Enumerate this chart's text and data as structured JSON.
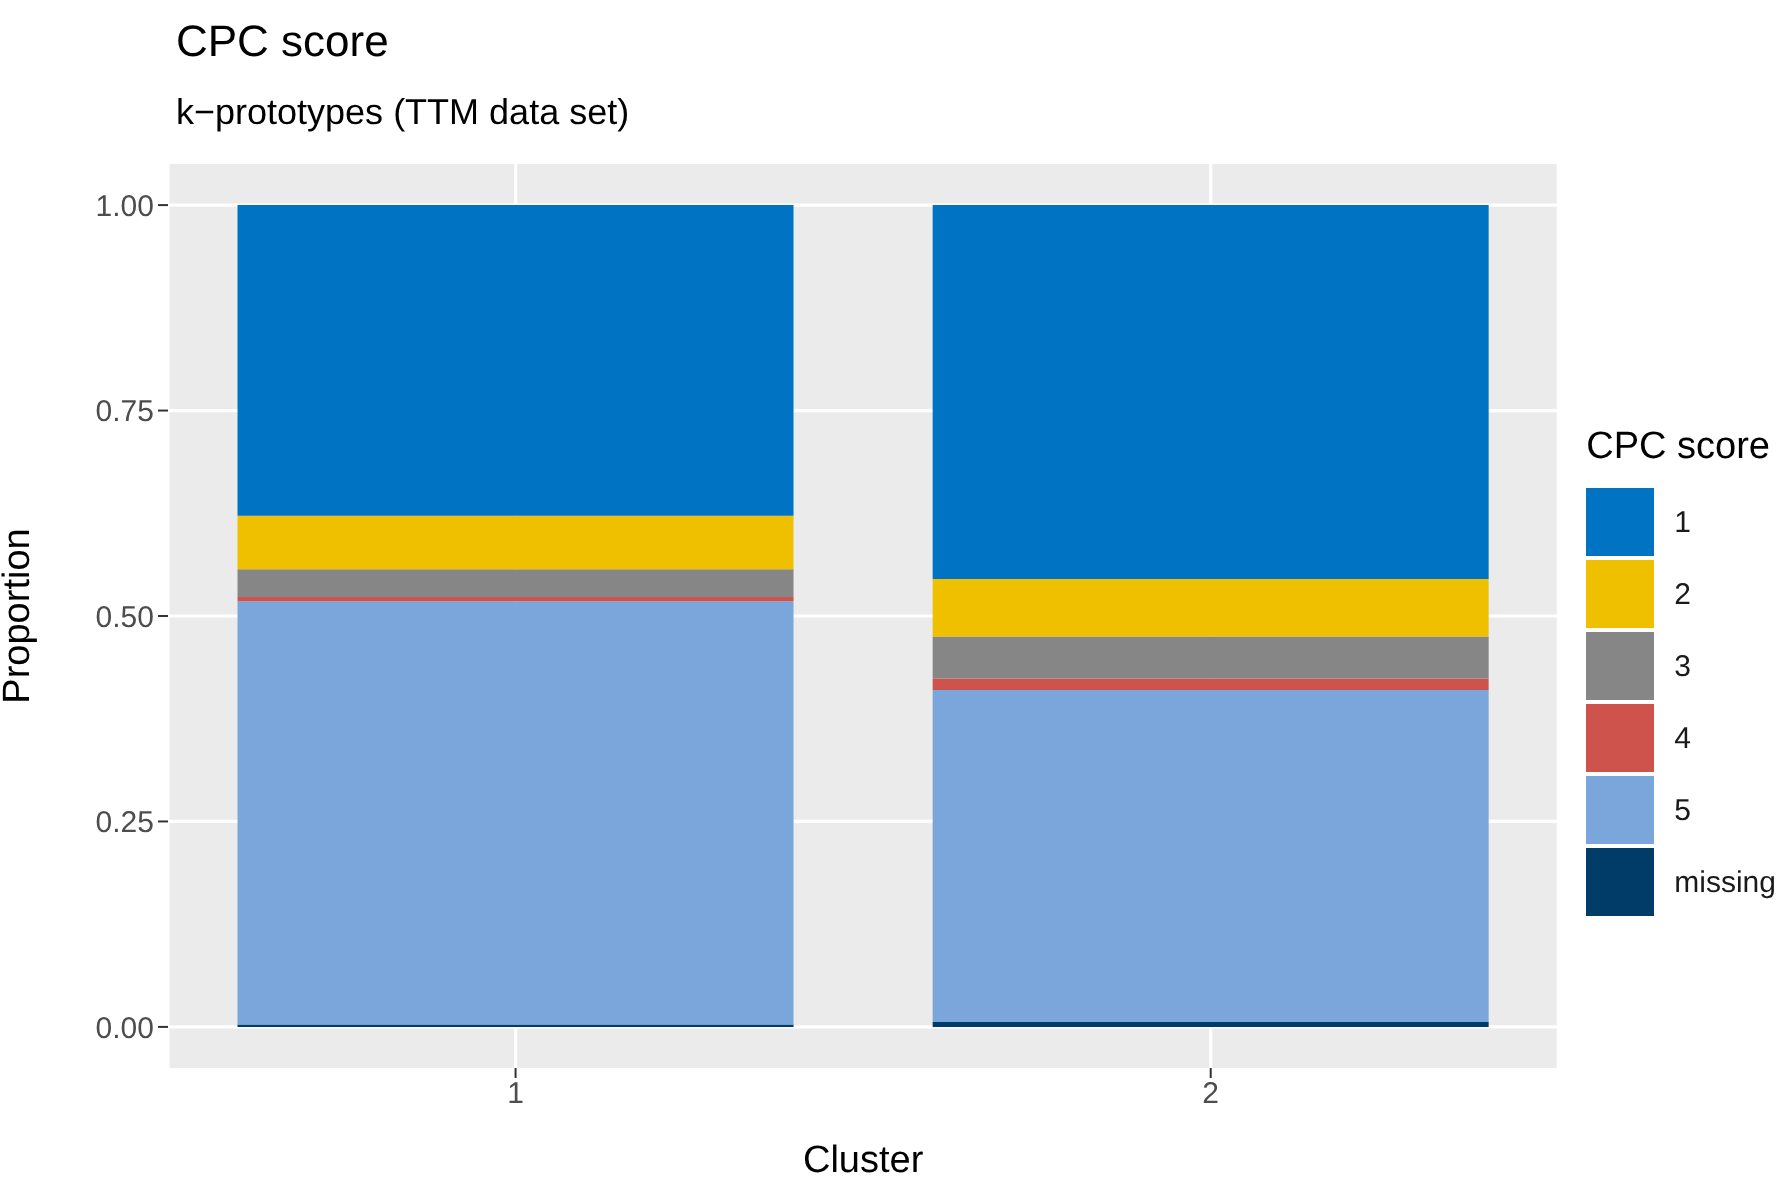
{
  "chart_data": {
    "type": "bar",
    "title": "CPC score",
    "subtitle": "k−prototypes (TTM data set)",
    "xlabel": "Cluster",
    "ylabel": "Proportion",
    "legend_title": "CPC score",
    "categories": [
      "1",
      "2"
    ],
    "stacked": true,
    "series": [
      {
        "name": "missing",
        "color": "#003c67",
        "values": [
          0.003,
          0.006
        ]
      },
      {
        "name": "5",
        "color": "#7aa6dc",
        "values": [
          0.515,
          0.404
        ]
      },
      {
        "name": "4",
        "color": "#cd534c",
        "values": [
          0.005,
          0.014
        ]
      },
      {
        "name": "3",
        "color": "#868686",
        "values": [
          0.034,
          0.051
        ]
      },
      {
        "name": "2",
        "color": "#efc000",
        "values": [
          0.065,
          0.07
        ]
      },
      {
        "name": "1",
        "color": "#0073c2",
        "values": [
          0.378,
          0.455
        ]
      }
    ],
    "ylim": [
      -0.05,
      1.05
    ],
    "yticks": [
      {
        "value": 0,
        "label": "0.00"
      },
      {
        "value": 0.25,
        "label": "0.25"
      },
      {
        "value": 0.5,
        "label": "0.50"
      },
      {
        "value": 0.75,
        "label": "0.75"
      },
      {
        "value": 1,
        "label": "1.00"
      }
    ],
    "grid": true,
    "legend": "right"
  }
}
